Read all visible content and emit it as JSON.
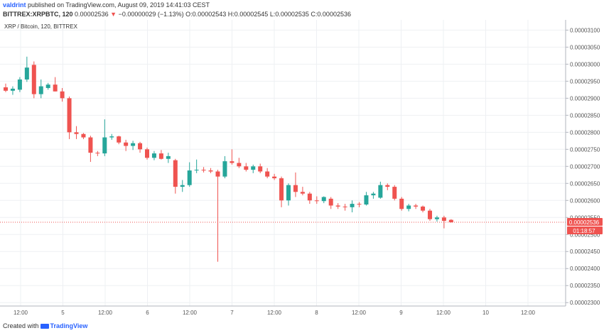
{
  "header": {
    "author": "valdrint",
    "published_text": "published on TradingView.com, August 09, 2019 14:41:03 CEST",
    "symbol": "BITTREX:XRPBTC, 120",
    "last": "0.00002536",
    "change_arrow": "▼",
    "change": "−0.00000029 (−1.13%)",
    "o_label": "O:",
    "o_value": "0.00002543",
    "h_label": "H:",
    "h_value": "0.00002545",
    "l_label": "L:",
    "l_value": "0.00002535",
    "c_label": "C:",
    "c_value": "0.00002536"
  },
  "footer": {
    "created_with": "Created with",
    "brand": "TradingView"
  },
  "colors": {
    "up": "#26a69a",
    "down": "#ef5350",
    "grid": "#eef0f3",
    "axis": "#787b86",
    "price_line": "#ef5350"
  },
  "chart_data": {
    "type": "candlestick",
    "title": "",
    "legend": "XRP / Bitcoin, 120, BITTREX",
    "price_label": "0.00002536",
    "countdown_label": "01:18:57",
    "ylim": [
      2.29e-05,
      3.13e-05
    ],
    "y_ticks": [
      "0.00003100",
      "0.00003050",
      "0.00003000",
      "0.00002950",
      "0.00002900",
      "0.00002850",
      "0.00002800",
      "0.00002750",
      "0.00002700",
      "0.00002650",
      "0.00002600",
      "0.00002550",
      "0.00002500",
      "0.00002450",
      "0.00002400",
      "0.00002350",
      "0.00002300"
    ],
    "x_ticks": [
      "12:00",
      "5",
      "12:00",
      "6",
      "12:00",
      "7",
      "12:00",
      "8",
      "12:00",
      "9",
      "12:00",
      "10",
      "12:00"
    ],
    "grid": true,
    "candles": [
      {
        "o": 2.932e-05,
        "h": 2.943e-05,
        "l": 2.918e-05,
        "c": 2.922e-05
      },
      {
        "o": 2.922e-05,
        "h": 2.935e-05,
        "l": 2.91e-05,
        "c": 2.928e-05
      },
      {
        "o": 2.925e-05,
        "h": 2.962e-05,
        "l": 2.918e-05,
        "c": 2.955e-05
      },
      {
        "o": 2.955e-05,
        "h": 3.022e-05,
        "l": 2.948e-05,
        "c": 2.99e-05
      },
      {
        "o": 2.998e-05,
        "h": 3.008e-05,
        "l": 2.9e-05,
        "c": 2.912e-05
      },
      {
        "o": 2.912e-05,
        "h": 2.955e-05,
        "l": 2.9e-05,
        "c": 2.935e-05
      },
      {
        "o": 2.93e-05,
        "h": 2.945e-05,
        "l": 2.925e-05,
        "c": 2.94e-05
      },
      {
        "o": 2.94e-05,
        "h": 2.962e-05,
        "l": 2.92e-05,
        "c": 2.92e-05
      },
      {
        "o": 2.92e-05,
        "h": 2.93e-05,
        "l": 2.89e-05,
        "c": 2.9e-05
      },
      {
        "o": 2.9e-05,
        "h": 2.905e-05,
        "l": 2.78e-05,
        "c": 2.8e-05
      },
      {
        "o": 2.8e-05,
        "h": 2.818e-05,
        "l": 2.78e-05,
        "c": 2.795e-05
      },
      {
        "o": 2.795e-05,
        "h": 2.798e-05,
        "l": 2.78e-05,
        "c": 2.785e-05
      },
      {
        "o": 2.785e-05,
        "h": 2.79e-05,
        "l": 2.713e-05,
        "c": 2.74e-05
      },
      {
        "o": 2.74e-05,
        "h": 2.745e-05,
        "l": 2.73e-05,
        "c": 2.738e-05
      },
      {
        "o": 2.738e-05,
        "h": 2.838e-05,
        "l": 2.73e-05,
        "c": 2.785e-05
      },
      {
        "o": 2.785e-05,
        "h": 2.795e-05,
        "l": 2.778e-05,
        "c": 2.788e-05
      },
      {
        "o": 2.788e-05,
        "h": 2.79e-05,
        "l": 2.765e-05,
        "c": 2.77e-05
      },
      {
        "o": 2.77e-05,
        "h": 2.778e-05,
        "l": 2.745e-05,
        "c": 2.76e-05
      },
      {
        "o": 2.76e-05,
        "h": 2.775e-05,
        "l": 2.748e-05,
        "c": 2.768e-05
      },
      {
        "o": 2.768e-05,
        "h": 2.772e-05,
        "l": 2.74e-05,
        "c": 2.75e-05
      },
      {
        "o": 2.75e-05,
        "h": 2.755e-05,
        "l": 2.72e-05,
        "c": 2.725e-05
      },
      {
        "o": 2.725e-05,
        "h": 2.745e-05,
        "l": 2.718e-05,
        "c": 2.738e-05
      },
      {
        "o": 2.738e-05,
        "h": 2.748e-05,
        "l": 2.72e-05,
        "c": 2.722e-05
      },
      {
        "o": 2.722e-05,
        "h": 2.74e-05,
        "l": 2.71e-05,
        "c": 2.73e-05
      },
      {
        "o": 2.718e-05,
        "h": 2.722e-05,
        "l": 2.62e-05,
        "c": 2.64e-05
      },
      {
        "o": 2.64e-05,
        "h": 2.66e-05,
        "l": 2.625e-05,
        "c": 2.645e-05
      },
      {
        "o": 2.645e-05,
        "h": 2.712e-05,
        "l": 2.64e-05,
        "c": 2.688e-05
      },
      {
        "o": 2.688e-05,
        "h": 2.72e-05,
        "l": 2.68e-05,
        "c": 2.69e-05
      },
      {
        "o": 2.69e-05,
        "h": 2.698e-05,
        "l": 2.682e-05,
        "c": 2.688e-05
      },
      {
        "o": 2.688e-05,
        "h": 2.695e-05,
        "l": 2.68e-05,
        "c": 2.685e-05
      },
      {
        "o": 2.685e-05,
        "h": 2.69e-05,
        "l": 2.42e-05,
        "c": 2.67e-05
      },
      {
        "o": 2.67e-05,
        "h": 2.73e-05,
        "l": 2.665e-05,
        "c": 2.715e-05
      },
      {
        "o": 2.715e-05,
        "h": 2.75e-05,
        "l": 2.705e-05,
        "c": 2.71e-05
      },
      {
        "o": 2.71e-05,
        "h": 2.725e-05,
        "l": 2.695e-05,
        "c": 2.7e-05
      },
      {
        "o": 2.7e-05,
        "h": 2.71e-05,
        "l": 2.685e-05,
        "c": 2.69e-05
      },
      {
        "o": 2.69e-05,
        "h": 2.705e-05,
        "l": 2.68e-05,
        "c": 2.7e-05
      },
      {
        "o": 2.7e-05,
        "h": 2.708e-05,
        "l": 2.68e-05,
        "c": 2.685e-05
      },
      {
        "o": 2.685e-05,
        "h": 2.695e-05,
        "l": 2.665e-05,
        "c": 2.67e-05
      },
      {
        "o": 2.67e-05,
        "h": 2.678e-05,
        "l": 2.66e-05,
        "c": 2.665e-05
      },
      {
        "o": 2.665e-05,
        "h": 2.67e-05,
        "l": 2.58e-05,
        "c": 2.6e-05
      },
      {
        "o": 2.6e-05,
        "h": 2.65e-05,
        "l": 2.585e-05,
        "c": 2.645e-05
      },
      {
        "o": 2.645e-05,
        "h": 2.682e-05,
        "l": 2.61e-05,
        "c": 2.625e-05
      },
      {
        "o": 2.625e-05,
        "h": 2.64e-05,
        "l": 2.615e-05,
        "c": 2.62e-05
      },
      {
        "o": 2.62e-05,
        "h": 2.625e-05,
        "l": 2.59e-05,
        "c": 2.6e-05
      },
      {
        "o": 2.6e-05,
        "h": 2.612e-05,
        "l": 2.59e-05,
        "c": 2.598e-05
      },
      {
        "o": 2.598e-05,
        "h": 2.612e-05,
        "l": 2.592e-05,
        "c": 2.61e-05
      },
      {
        "o": 2.605e-05,
        "h": 2.61e-05,
        "l": 2.575e-05,
        "c": 2.585e-05
      },
      {
        "o": 2.585e-05,
        "h": 2.592e-05,
        "l": 2.575e-05,
        "c": 2.582e-05
      },
      {
        "o": 2.582e-05,
        "h": 2.59e-05,
        "l": 2.57e-05,
        "c": 2.58e-05
      },
      {
        "o": 2.58e-05,
        "h": 2.6e-05,
        "l": 2.565e-05,
        "c": 2.59e-05
      },
      {
        "o": 2.59e-05,
        "h": 2.595e-05,
        "l": 2.58e-05,
        "c": 2.588e-05
      },
      {
        "o": 2.588e-05,
        "h": 2.625e-05,
        "l": 2.585e-05,
        "c": 2.615e-05
      },
      {
        "o": 2.615e-05,
        "h": 2.625e-05,
        "l": 2.605e-05,
        "c": 2.62e-05
      },
      {
        "o": 2.608e-05,
        "h": 2.655e-05,
        "l": 2.605e-05,
        "c": 2.645e-05
      },
      {
        "o": 2.645e-05,
        "h": 2.65e-05,
        "l": 2.63e-05,
        "c": 2.64e-05
      },
      {
        "o": 2.64e-05,
        "h": 2.645e-05,
        "l": 2.6e-05,
        "c": 2.605e-05
      },
      {
        "o": 2.605e-05,
        "h": 2.61e-05,
        "l": 2.57e-05,
        "c": 2.575e-05
      },
      {
        "o": 2.575e-05,
        "h": 2.59e-05,
        "l": 2.568e-05,
        "c": 2.585e-05
      },
      {
        "o": 2.585e-05,
        "h": 2.59e-05,
        "l": 2.575e-05,
        "c": 2.582e-05
      },
      {
        "o": 2.582e-05,
        "h": 2.585e-05,
        "l": 2.565e-05,
        "c": 2.57e-05
      },
      {
        "o": 2.57e-05,
        "h": 2.575e-05,
        "l": 2.54e-05,
        "c": 2.545e-05
      },
      {
        "o": 2.545e-05,
        "h": 2.555e-05,
        "l": 2.538e-05,
        "c": 2.55e-05
      },
      {
        "o": 2.55e-05,
        "h": 2.555e-05,
        "l": 2.518e-05,
        "c": 2.54e-05
      },
      {
        "o": 2.543e-05,
        "h": 2.545e-05,
        "l": 2.535e-05,
        "c": 2.536e-05
      }
    ]
  }
}
